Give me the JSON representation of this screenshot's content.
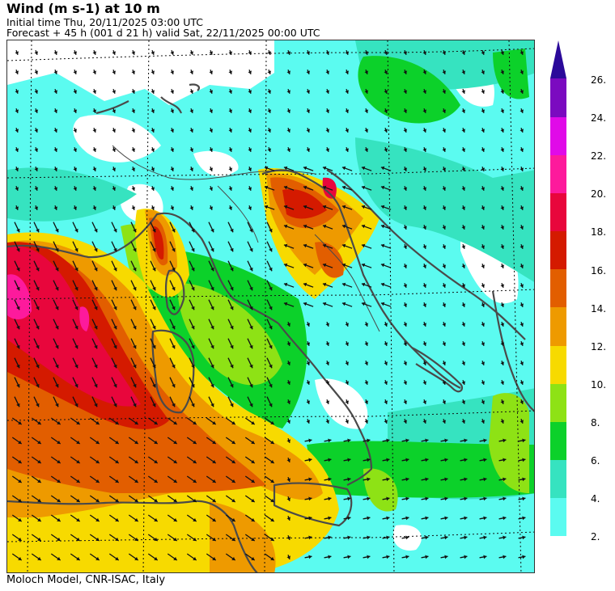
{
  "header": {
    "title": "Wind (m s-1) at 10 m",
    "initial_time": "Initial time  Thu, 20/11/2025  03:00 UTC",
    "forecast": "Forecast  +  45 h  (001 d 21 h)  valid Sat, 22/11/2025 00:00 UTC"
  },
  "footer": {
    "credit": "Moloch Model, CNR-ISAC, Italy"
  },
  "map": {
    "variable": "10 m wind speed with direction arrows",
    "region": "Central Mediterranean / Italy",
    "background_color": "#ffffff",
    "coastline_color": "#4a4a4a",
    "graticule_style": "dotted black"
  },
  "colorbar": {
    "units": "m s-1",
    "tip_color": "#2b0a9a",
    "bins": [
      {
        "from": 2,
        "to": 4,
        "color": "#5bfbf0"
      },
      {
        "from": 4,
        "to": 6,
        "color": "#36e3c0"
      },
      {
        "from": 6,
        "to": 8,
        "color": "#0cd12a"
      },
      {
        "from": 8,
        "to": 10,
        "color": "#8ee215"
      },
      {
        "from": 10,
        "to": 12,
        "color": "#f7da00"
      },
      {
        "from": 12,
        "to": 14,
        "color": "#ee9a00"
      },
      {
        "from": 14,
        "to": 16,
        "color": "#e25e00"
      },
      {
        "from": 16,
        "to": 18,
        "color": "#d41a00"
      },
      {
        "from": 18,
        "to": 20,
        "color": "#e8063c"
      },
      {
        "from": 20,
        "to": 22,
        "color": "#fd1a9c"
      },
      {
        "from": 22,
        "to": 24,
        "color": "#e00ae8"
      },
      {
        "from": 24,
        "to": 26,
        "color": "#7b0ac0"
      }
    ],
    "labels": [
      "26.",
      "24.",
      "22.",
      "20.",
      "18.",
      "16.",
      "14.",
      "12.",
      "10.",
      "8.",
      "6.",
      "4.",
      "2."
    ]
  }
}
